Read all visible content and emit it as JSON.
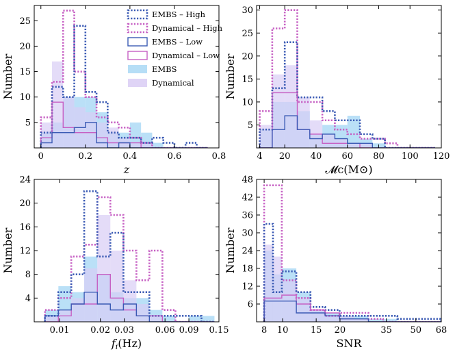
{
  "colors": {
    "embs_line": "#3a5ab4",
    "dyn_line": "#c65fc3",
    "embs_fill": "#a9d8f5",
    "dyn_fill": "#d9cdf5"
  },
  "legend": [
    {
      "label": "EMBS – High",
      "style": "dotted",
      "color": "#3a5ab4"
    },
    {
      "label": "Dynamical – High",
      "style": "dotted",
      "color": "#c65fc3"
    },
    {
      "label": "EMBS – Low",
      "style": "solid",
      "color": "#3a5ab4"
    },
    {
      "label": "Dynamical – Low",
      "style": "solid",
      "color": "#c65fc3"
    },
    {
      "label": "EMBS",
      "style": "fill",
      "color": "#a9d8f5"
    },
    {
      "label": "Dynamical",
      "style": "fill",
      "color": "#d9cdf5"
    }
  ],
  "chart_data": [
    {
      "type": "histogram",
      "panel": "top-left",
      "xlabel": "z",
      "ylabel": "Number",
      "xlim": [
        -0.03,
        0.8
      ],
      "ylim": [
        0,
        28
      ],
      "xscale": "linear",
      "xticks": [
        {
          "v": 0,
          "t": "0"
        },
        {
          "v": 0.2,
          "t": "0.2"
        },
        {
          "v": 0.4,
          "t": "0.4"
        },
        {
          "v": 0.6,
          "t": "0.6"
        },
        {
          "v": 0.8,
          "t": "0.8"
        }
      ],
      "yticks": [
        {
          "v": 5,
          "t": "5"
        },
        {
          "v": 10,
          "t": "10"
        },
        {
          "v": 15,
          "t": "15"
        },
        {
          "v": 20,
          "t": "20"
        },
        {
          "v": 25,
          "t": "25"
        }
      ],
      "bins": [
        0,
        0.05,
        0.1,
        0.15,
        0.2,
        0.25,
        0.3,
        0.35,
        0.4,
        0.45,
        0.5,
        0.55,
        0.6,
        0.65,
        0.7,
        0.75
      ],
      "series": [
        {
          "name": "EMBS",
          "style": "fill",
          "values": [
            3,
            5,
            10,
            10,
            10,
            7,
            3,
            3,
            5,
            3,
            1,
            0,
            0,
            0,
            0
          ]
        },
        {
          "name": "Dynamical",
          "style": "fill",
          "values": [
            5,
            17,
            10,
            8,
            7,
            5,
            4,
            2,
            1,
            1,
            0,
            0,
            0,
            0,
            0
          ]
        },
        {
          "name": "Dynamical – High",
          "style": "dotted",
          "values": [
            6,
            13,
            27,
            15,
            10,
            6,
            5,
            4,
            2,
            1,
            0,
            0,
            0,
            0,
            0
          ]
        },
        {
          "name": "EMBS – High",
          "style": "dotted",
          "values": [
            3,
            12,
            10,
            24,
            11,
            9,
            3,
            2,
            2,
            1,
            2,
            1,
            0,
            1,
            0
          ]
        },
        {
          "name": "Dynamical – Low",
          "style": "solid",
          "values": [
            2,
            9,
            4,
            3,
            3,
            2,
            1,
            1,
            1,
            0,
            0,
            0,
            0,
            0,
            0
          ]
        },
        {
          "name": "EMBS – Low",
          "style": "solid",
          "values": [
            1,
            3,
            3,
            4,
            5,
            1,
            0,
            1,
            0,
            0,
            0,
            0,
            0,
            0,
            0
          ]
        }
      ]
    },
    {
      "type": "histogram",
      "panel": "top-right",
      "xlabel": "𝓜c(M⊙)",
      "ylabel": "Number",
      "xlim": [
        2,
        120
      ],
      "ylim": [
        0,
        31
      ],
      "xscale": "linear",
      "xticks": [
        {
          "v": 4,
          "t": "4"
        },
        {
          "v": 20,
          "t": "20"
        },
        {
          "v": 40,
          "t": "40"
        },
        {
          "v": 60,
          "t": "60"
        },
        {
          "v": 80,
          "t": "80"
        },
        {
          "v": 100,
          "t": "100"
        },
        {
          "v": 120,
          "t": "120"
        }
      ],
      "yticks": [
        {
          "v": 5,
          "t": "5"
        },
        {
          "v": 10,
          "t": "10"
        },
        {
          "v": 15,
          "t": "15"
        },
        {
          "v": 20,
          "t": "20"
        },
        {
          "v": 25,
          "t": "25"
        },
        {
          "v": 30,
          "t": "30"
        }
      ],
      "bins": [
        4,
        12,
        20,
        28,
        36,
        44,
        52,
        60,
        68,
        76,
        84,
        92,
        100,
        108,
        116
      ],
      "series": [
        {
          "name": "EMBS",
          "style": "fill",
          "values": [
            4,
            10,
            10,
            8,
            3,
            5,
            5,
            7,
            2,
            1,
            0,
            0,
            0,
            0
          ]
        },
        {
          "name": "Dynamical",
          "style": "fill",
          "values": [
            5,
            16,
            18,
            11,
            6,
            3,
            2,
            1,
            1,
            0,
            0,
            0,
            0,
            0
          ]
        },
        {
          "name": "Dynamical – High",
          "style": "dotted",
          "values": [
            8,
            26,
            30,
            10,
            10,
            6,
            4,
            3,
            2,
            2,
            1,
            0,
            0,
            0
          ]
        },
        {
          "name": "EMBS – High",
          "style": "dotted",
          "values": [
            4,
            13,
            23,
            11,
            11,
            8,
            6,
            6,
            3,
            2,
            0,
            0,
            0,
            0
          ]
        },
        {
          "name": "Dynamical – Low",
          "style": "solid",
          "values": [
            0,
            12,
            12,
            4,
            3,
            1,
            1,
            1,
            0,
            0,
            0,
            0,
            0,
            0
          ]
        },
        {
          "name": "EMBS – Low",
          "style": "solid",
          "values": [
            0,
            4,
            7,
            4,
            2,
            3,
            2,
            1,
            1,
            0,
            0,
            0,
            0,
            0
          ]
        }
      ]
    },
    {
      "type": "histogram",
      "panel": "bottom-left",
      "xlabel": "fi(Hz)",
      "ylabel": "Number",
      "xlim": [
        0.0065,
        0.15
      ],
      "ylim": [
        0,
        24
      ],
      "xscale": "log",
      "xticks": [
        {
          "v": 0.01,
          "t": "0.01"
        },
        {
          "v": 0.02,
          "t": "0.02"
        },
        {
          "v": 0.03,
          "t": "0.03"
        },
        {
          "v": 0.06,
          "t": "0.06"
        },
        {
          "v": 0.09,
          "t": "0.09"
        },
        {
          "v": 0.15,
          "t": "0.15"
        }
      ],
      "yticks": [
        {
          "v": 4,
          "t": "4"
        },
        {
          "v": 8,
          "t": "8"
        },
        {
          "v": 12,
          "t": "12"
        },
        {
          "v": 16,
          "t": "16"
        },
        {
          "v": 20,
          "t": "20"
        },
        {
          "v": 24,
          "t": "24"
        }
      ],
      "bins": [
        0.0078,
        0.0098,
        0.0122,
        0.0152,
        0.019,
        0.0237,
        0.0296,
        0.0369,
        0.046,
        0.0574,
        0.0716,
        0.0894,
        0.1115,
        0.139
      ],
      "series": [
        {
          "name": "EMBS",
          "style": "fill",
          "values": [
            2,
            6,
            5,
            11,
            8,
            5,
            4,
            4,
            2,
            1,
            0,
            1,
            1
          ]
        },
        {
          "name": "Dynamical",
          "style": "fill",
          "values": [
            1,
            2,
            4,
            9,
            18,
            12,
            7,
            3,
            1,
            0,
            0,
            0,
            0
          ]
        },
        {
          "name": "Dynamical – High",
          "style": "dotted",
          "values": [
            2,
            4,
            11,
            13,
            21,
            18,
            12,
            7,
            12,
            2,
            0,
            0,
            0
          ]
        },
        {
          "name": "EMBS – High",
          "style": "dotted",
          "values": [
            1,
            5,
            8,
            22,
            11,
            15,
            5,
            5,
            1,
            1,
            1,
            1,
            0
          ]
        },
        {
          "name": "Dynamical – Low",
          "style": "solid",
          "values": [
            0,
            1,
            3,
            3,
            8,
            4,
            2,
            1,
            1,
            0,
            0,
            0,
            0
          ]
        },
        {
          "name": "EMBS – Low",
          "style": "solid",
          "values": [
            1,
            2,
            3,
            5,
            3,
            2,
            3,
            1,
            0,
            0,
            0,
            0,
            0
          ]
        }
      ]
    },
    {
      "type": "histogram",
      "panel": "bottom-right",
      "xlabel": "SNR",
      "ylabel": "Number",
      "xlim": [
        7.3,
        68
      ],
      "ylim": [
        0,
        48
      ],
      "xscale": "log",
      "xticks": [
        {
          "v": 8,
          "t": "8"
        },
        {
          "v": 10,
          "t": "10"
        },
        {
          "v": 15,
          "t": "15"
        },
        {
          "v": 20,
          "t": "20"
        },
        {
          "v": 35,
          "t": "35"
        },
        {
          "v": 50,
          "t": "50"
        },
        {
          "v": 68,
          "t": "68"
        }
      ],
      "yticks": [
        {
          "v": 6,
          "t": "6"
        },
        {
          "v": 12,
          "t": "12"
        },
        {
          "v": 18,
          "t": "18"
        },
        {
          "v": 24,
          "t": "24"
        },
        {
          "v": 30,
          "t": "30"
        },
        {
          "v": 36,
          "t": "36"
        },
        {
          "v": 42,
          "t": "42"
        },
        {
          "v": 48,
          "t": "48"
        }
      ],
      "bins": [
        8,
        8.9,
        9.9,
        11.8,
        14,
        16.7,
        19.9,
        23.7,
        28.2,
        33.6,
        40,
        47.6,
        56.7,
        67.5
      ],
      "series": [
        {
          "name": "EMBS",
          "style": "fill",
          "values": [
            24,
            16,
            18,
            10,
            4,
            3,
            2,
            2,
            1,
            1,
            0,
            0,
            0
          ]
        },
        {
          "name": "Dynamical",
          "style": "fill",
          "values": [
            26,
            22,
            14,
            8,
            4,
            2,
            2,
            1,
            0,
            0,
            0,
            0,
            0
          ]
        },
        {
          "name": "Dynamical – High",
          "style": "dotted",
          "values": [
            46,
            46,
            14,
            8,
            4,
            2,
            3,
            3,
            1,
            0,
            0,
            0,
            0
          ]
        },
        {
          "name": "EMBS – High",
          "style": "dotted",
          "values": [
            33,
            10,
            17,
            10,
            5,
            4,
            2,
            2,
            2,
            2,
            1,
            1,
            1
          ]
        },
        {
          "name": "Dynamical – Low",
          "style": "solid",
          "values": [
            8,
            8,
            9,
            6,
            4,
            3,
            1,
            1,
            0,
            0,
            0,
            0,
            0
          ]
        },
        {
          "name": "EMBS – Low",
          "style": "solid",
          "values": [
            7,
            7,
            7,
            3,
            3,
            2,
            1,
            1,
            0,
            0,
            0,
            0,
            0
          ]
        }
      ]
    }
  ]
}
